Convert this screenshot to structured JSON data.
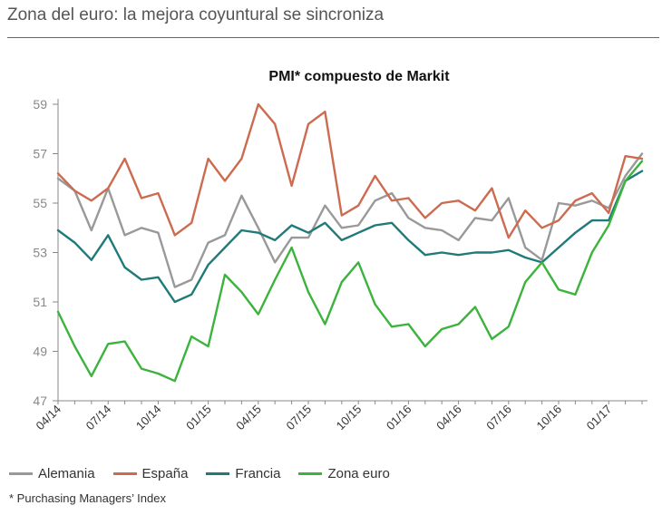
{
  "page": {
    "title": "Zona del euro: la mejora coyuntural se sincroniza",
    "footnote": "* Purchasing Managers’ Index"
  },
  "chart_data": {
    "type": "line",
    "title": "PMI* compuesto de Markit",
    "xlabel": "",
    "ylabel": "",
    "ylim": [
      47,
      59
    ],
    "yticks": [
      47,
      49,
      51,
      53,
      55,
      57,
      59
    ],
    "grid": false,
    "legend_position": "bottom",
    "x": [
      "04/14",
      "05/14",
      "06/14",
      "07/14",
      "08/14",
      "09/14",
      "10/14",
      "11/14",
      "12/14",
      "01/15",
      "02/15",
      "03/15",
      "04/15",
      "05/15",
      "06/15",
      "07/15",
      "08/15",
      "09/15",
      "10/15",
      "11/15",
      "12/15",
      "01/16",
      "02/16",
      "03/16",
      "04/16",
      "05/16",
      "06/16",
      "07/16",
      "08/16",
      "09/16",
      "10/16",
      "11/16",
      "12/16",
      "01/17",
      "02/17",
      "03/17"
    ],
    "xtick_labels": [
      "04/14",
      "07/14",
      "10/14",
      "01/15",
      "04/15",
      "07/15",
      "10/15",
      "01/16",
      "04/16",
      "07/16",
      "10/16",
      "01/17"
    ],
    "series": [
      {
        "name": "Alemania",
        "color": "#999999",
        "values": [
          56.0,
          55.5,
          53.9,
          55.6,
          53.7,
          54.0,
          53.8,
          51.6,
          51.9,
          53.4,
          53.7,
          55.3,
          54.0,
          52.6,
          53.6,
          53.6,
          54.9,
          54.0,
          54.1,
          55.1,
          55.4,
          54.4,
          54.0,
          53.9,
          53.5,
          54.4,
          54.3,
          55.2,
          53.2,
          52.7,
          55.0,
          54.9,
          55.1,
          54.8,
          56.1,
          57.0
        ]
      },
      {
        "name": "España",
        "color": "#cc6b4f",
        "values": [
          56.2,
          55.5,
          55.1,
          55.6,
          56.8,
          55.2,
          55.4,
          53.7,
          54.2,
          56.8,
          55.9,
          56.8,
          59.0,
          58.2,
          55.7,
          58.2,
          58.7,
          54.5,
          54.9,
          56.1,
          55.1,
          55.2,
          54.4,
          55.0,
          55.1,
          54.7,
          55.6,
          53.6,
          54.7,
          54.0,
          54.3,
          55.1,
          55.4,
          54.6,
          56.9,
          56.8
        ]
      },
      {
        "name": "Francia",
        "color": "#1f7a7a",
        "values": [
          53.9,
          53.4,
          52.7,
          53.7,
          52.4,
          51.9,
          52.0,
          51.0,
          51.3,
          52.5,
          53.2,
          53.9,
          53.8,
          53.5,
          54.1,
          53.8,
          54.2,
          53.5,
          53.8,
          54.1,
          54.2,
          53.5,
          52.9,
          53.0,
          52.9,
          53.0,
          53.0,
          53.1,
          52.8,
          52.6,
          53.2,
          53.8,
          54.3,
          54.3,
          55.9,
          56.3
        ]
      },
      {
        "name": "Zona euro",
        "color": "#3cb33c",
        "values": [
          50.6,
          49.2,
          48.0,
          49.3,
          49.4,
          48.3,
          48.1,
          47.8,
          49.6,
          49.2,
          52.1,
          51.4,
          50.5,
          51.9,
          53.2,
          51.4,
          50.1,
          51.8,
          52.6,
          50.9,
          50.0,
          50.1,
          49.2,
          49.9,
          50.1,
          50.8,
          49.5,
          50.0,
          51.8,
          52.6,
          51.5,
          51.3,
          53.0,
          54.1,
          55.9,
          56.7
        ]
      }
    ]
  }
}
